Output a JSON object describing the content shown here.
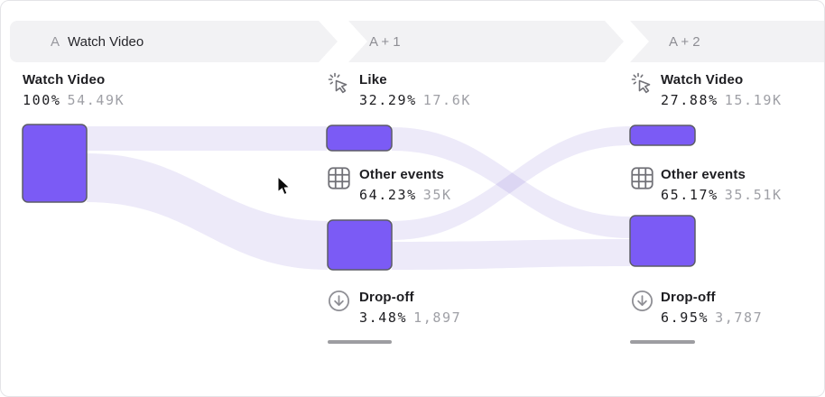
{
  "header": {
    "steps": [
      {
        "prefix": "A",
        "label": "Watch Video"
      },
      {
        "label": "A + 1"
      },
      {
        "label": "A + 2"
      }
    ]
  },
  "funnel": {
    "columns": [
      {
        "nodes": [
          {
            "icon": "",
            "label": "Watch Video",
            "percent": "100%",
            "count": "54.49K"
          }
        ]
      },
      {
        "nodes": [
          {
            "icon": "click-icon",
            "label": "Like",
            "percent": "32.29%",
            "count": "17.6K"
          },
          {
            "icon": "grid-icon",
            "label": "Other events",
            "percent": "64.23%",
            "count": "35K"
          },
          {
            "icon": "drop-off-icon",
            "label": "Drop-off",
            "percent": "3.48%",
            "count": "1,897"
          }
        ]
      },
      {
        "nodes": [
          {
            "icon": "click-icon",
            "label": "Watch Video",
            "percent": "27.88%",
            "count": "15.19K"
          },
          {
            "icon": "grid-icon",
            "label": "Other events",
            "percent": "65.17%",
            "count": "35.51K"
          },
          {
            "icon": "drop-off-icon",
            "label": "Drop-off",
            "percent": "6.95%",
            "count": "3,787"
          }
        ]
      }
    ]
  },
  "colors": {
    "accent": "#7B5BF5",
    "flow": "#EDEAF9",
    "node_stroke": "#5C5C66",
    "dropoff_bar": "#9D9DA1",
    "header_bg": "#F2F2F4",
    "text_dark": "#1D1D21",
    "text_gray": "#9FA0A6",
    "icon_gray": "#717177"
  },
  "chart_data": {
    "type": "sankey",
    "steps": [
      "A Watch Video",
      "A + 1",
      "A + 2"
    ],
    "nodes": [
      {
        "step": 0,
        "label": "Watch Video",
        "percent": 100,
        "count": 54490,
        "count_label": "54.49K"
      },
      {
        "step": 1,
        "label": "Like",
        "percent": 32.29,
        "count": 17600,
        "count_label": "17.6K"
      },
      {
        "step": 1,
        "label": "Other events",
        "percent": 64.23,
        "count": 35000,
        "count_label": "35K"
      },
      {
        "step": 1,
        "label": "Drop-off",
        "percent": 3.48,
        "count": 1897,
        "count_label": "1,897"
      },
      {
        "step": 2,
        "label": "Watch Video",
        "percent": 27.88,
        "count": 15190,
        "count_label": "15.19K"
      },
      {
        "step": 2,
        "label": "Other events",
        "percent": 65.17,
        "count": 35510,
        "count_label": "35.51K"
      },
      {
        "step": 2,
        "label": "Drop-off",
        "percent": 6.95,
        "count": 3787,
        "count_label": "3,787"
      }
    ],
    "links": [
      {
        "source": "A:Watch Video",
        "target": "A+1:Like"
      },
      {
        "source": "A:Watch Video",
        "target": "A+1:Other events"
      },
      {
        "source": "A+1:Like",
        "target": "A+2:Other events"
      },
      {
        "source": "A+1:Other events",
        "target": "A+2:Watch Video"
      },
      {
        "source": "A+1:Other events",
        "target": "A+2:Other events"
      }
    ]
  }
}
